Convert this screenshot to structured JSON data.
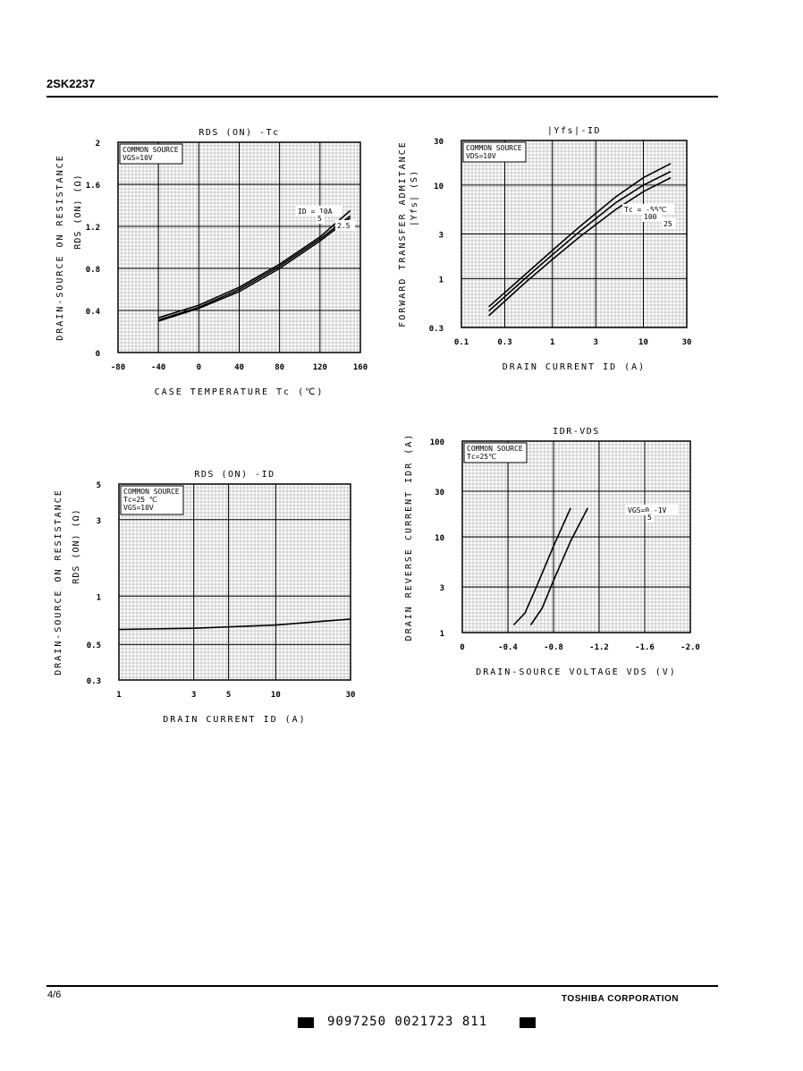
{
  "header": {
    "part_number": "2SK2237"
  },
  "footer": {
    "page": "4/6",
    "company": "TOSHIBA CORPORATION",
    "barcode_text": "9097250 0021723 811"
  },
  "chart_data": [
    {
      "id": "rds-tc",
      "type": "line",
      "title": "RDS (ON) -Tc",
      "xlabel": "CASE TEMPERATURE Tc (℃)",
      "ylabel": "DRAIN-SOURCE ON RESISTANCE",
      "ylabel2": "RDS (ON) (Ω)",
      "xlim": [
        -80,
        160
      ],
      "ylim": [
        0,
        2
      ],
      "xscale": "linear",
      "yscale": "linear",
      "xticks": [
        -80,
        -40,
        0,
        40,
        80,
        120,
        160
      ],
      "yticks": [
        0,
        0.4,
        0.8,
        1.2,
        1.6,
        2
      ],
      "xtick_labels": [
        "-80",
        "-40",
        "0",
        "40",
        "80",
        "120",
        "160"
      ],
      "ytick_labels": [
        "0",
        "0.4",
        "0.8",
        "1.2",
        "1.6",
        "2"
      ],
      "legend_lines": [
        "COMMON SOURCE",
        "VGS=10V"
      ],
      "annotations": [
        "ID = 10A",
        "5",
        "2.5"
      ],
      "grid": true,
      "series": [
        {
          "x": [
            -40,
            0,
            40,
            80,
            120,
            150
          ],
          "y": [
            0.33,
            0.45,
            0.62,
            0.84,
            1.1,
            1.35
          ]
        },
        {
          "x": [
            -40,
            0,
            40,
            80,
            120,
            150
          ],
          "y": [
            0.31,
            0.43,
            0.6,
            0.82,
            1.08,
            1.3
          ]
        },
        {
          "x": [
            -40,
            0,
            40,
            80,
            120,
            150
          ],
          "y": [
            0.3,
            0.42,
            0.58,
            0.8,
            1.06,
            1.28
          ]
        }
      ]
    },
    {
      "id": "yfs-id",
      "type": "line",
      "title": "|Yfs|-ID",
      "xlabel": "DRAIN CURRENT ID (A)",
      "ylabel": "FORWARD TRANSFER ADMITANCE",
      "ylabel2": "|Yfs| (S)",
      "xlim": [
        0.1,
        30
      ],
      "ylim": [
        0.3,
        30
      ],
      "xscale": "log",
      "yscale": "log",
      "xticks": [
        0.1,
        0.3,
        1,
        3,
        10,
        30
      ],
      "yticks": [
        0.3,
        1,
        3,
        10,
        30
      ],
      "xtick_labels": [
        "0.1",
        "0.3",
        "1",
        "3",
        "10",
        "30"
      ],
      "ytick_labels": [
        "0.3",
        "1",
        "3",
        "10",
        "30"
      ],
      "legend_lines": [
        "COMMON SOURCE",
        "VDS=10V"
      ],
      "annotations": [
        "Tc = -55℃",
        "100",
        "25"
      ],
      "grid": true,
      "series": [
        {
          "x": [
            0.2,
            0.5,
            1,
            2,
            5,
            10,
            20
          ],
          "y": [
            0.5,
            1.1,
            2,
            3.6,
            7.5,
            12,
            17
          ]
        },
        {
          "x": [
            0.2,
            0.5,
            1,
            2,
            5,
            10,
            20
          ],
          "y": [
            0.45,
            1,
            1.8,
            3.2,
            6.5,
            10,
            14
          ]
        },
        {
          "x": [
            0.2,
            0.5,
            1,
            2,
            5,
            10,
            20
          ],
          "y": [
            0.4,
            0.9,
            1.6,
            2.8,
            5.5,
            8.5,
            12
          ]
        }
      ]
    },
    {
      "id": "rds-id",
      "type": "line",
      "title": "RDS (ON) -ID",
      "xlabel": "DRAIN CURRENT ID (A)",
      "ylabel": "DRAIN-SOURCE ON RESISTANCE",
      "ylabel2": "RDS (ON) (Ω)",
      "xlim": [
        1,
        30
      ],
      "ylim": [
        0.3,
        5
      ],
      "xscale": "log",
      "yscale": "log",
      "xticks": [
        1,
        3,
        5,
        10,
        30
      ],
      "yticks": [
        0.3,
        0.5,
        1,
        3,
        5
      ],
      "xtick_labels": [
        "1",
        "3",
        "5",
        "10",
        "30"
      ],
      "ytick_labels": [
        "0.3",
        "0.5",
        "1",
        "3",
        "5"
      ],
      "legend_lines": [
        "COMMON SOURCE",
        "Tc=25 ℃",
        "VGS=10V"
      ],
      "annotations": [],
      "grid": true,
      "series": [
        {
          "x": [
            1,
            3,
            10,
            30
          ],
          "y": [
            0.62,
            0.63,
            0.66,
            0.72
          ]
        }
      ]
    },
    {
      "id": "idr-vds",
      "type": "line",
      "title": "IDR-VDS",
      "xlabel": "DRAIN-SOURCE VOLTAGE VDS (V)",
      "ylabel": "DRAIN REVERSE CURRENT IDR (A)",
      "ylabel2": "",
      "xlim": [
        0,
        -2.0
      ],
      "ylim": [
        1,
        100
      ],
      "xscale": "linear",
      "yscale": "log",
      "xticks": [
        0,
        -0.4,
        -0.8,
        -1.2,
        -1.6,
        -2.0
      ],
      "yticks": [
        1,
        3,
        10,
        30,
        100
      ],
      "xtick_labels": [
        "0",
        "-0.4",
        "-0.8",
        "-1.2",
        "-1.6",
        "-2.0"
      ],
      "ytick_labels": [
        "1",
        "3",
        "10",
        "30",
        "100"
      ],
      "legend_lines": [
        "COMMON SOURCE",
        "Tc=25℃"
      ],
      "annotations": [
        "VGS=0,-1V",
        "5"
      ],
      "grid": true,
      "series": [
        {
          "x": [
            -0.45,
            -0.55,
            -0.65,
            -0.8,
            -0.95
          ],
          "y": [
            1.2,
            1.6,
            3,
            8,
            20
          ]
        },
        {
          "x": [
            -0.6,
            -0.7,
            -0.8,
            -0.95,
            -1.1
          ],
          "y": [
            1.2,
            1.8,
            3.5,
            9,
            20
          ]
        }
      ]
    }
  ]
}
